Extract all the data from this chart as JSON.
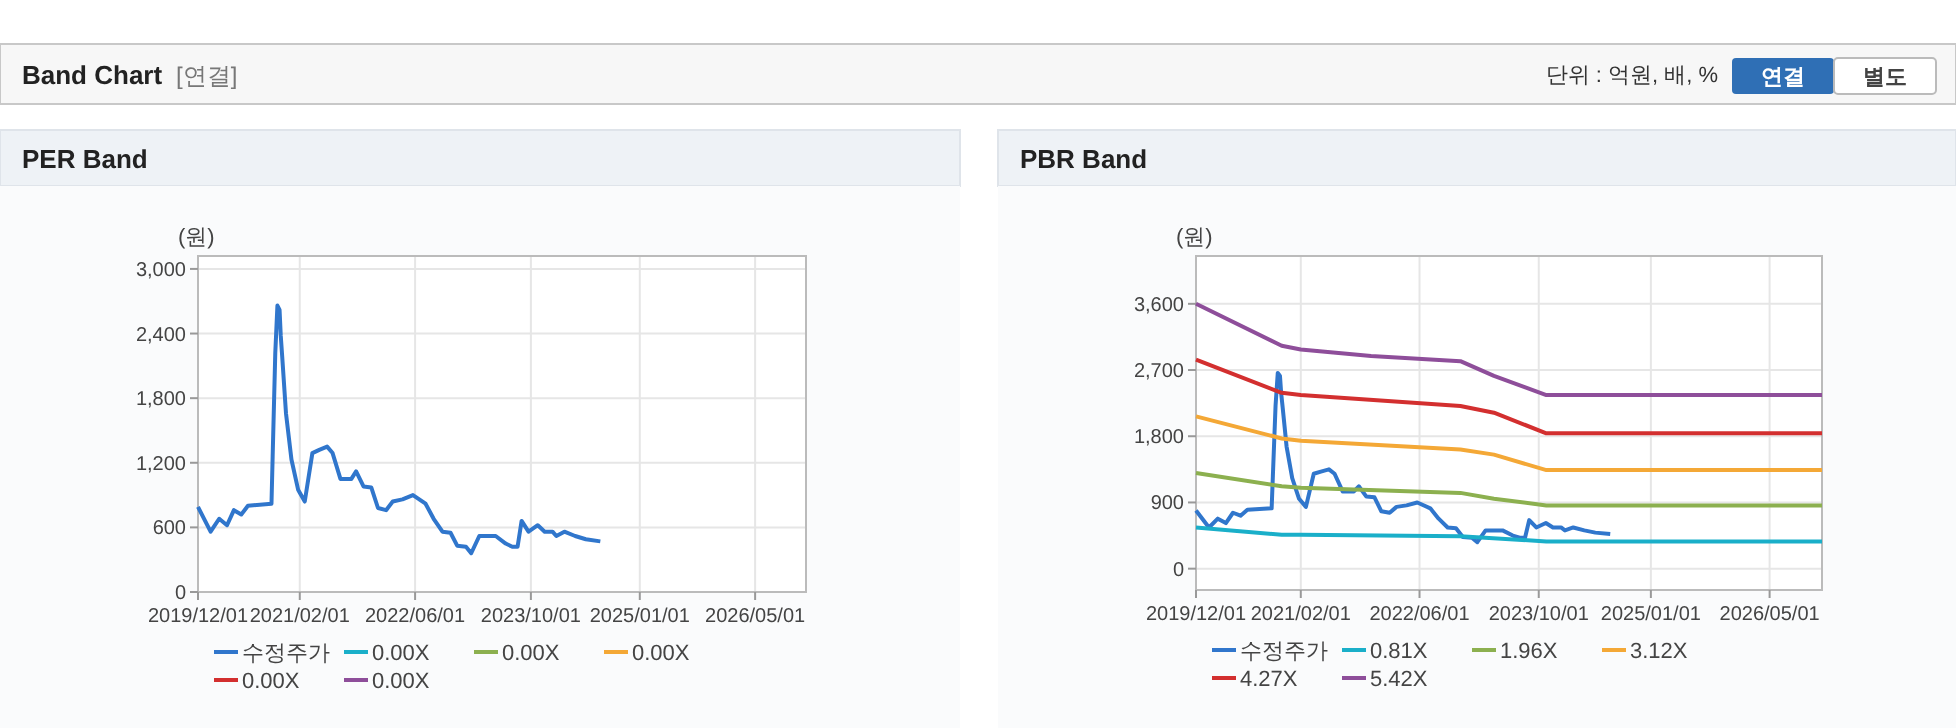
{
  "chart_data": [
    {
      "type": "other",
      "title": "Band Chart",
      "annotations": [
        "[연결]",
        "단위 : 억원, 배, %",
        "연결",
        "별도"
      ]
    },
    {
      "type": "line",
      "title": "PER Band",
      "ylabel": "(원)",
      "xlim": [
        "2019-12-01",
        "2026-12-01"
      ],
      "ylim": [
        0,
        3120
      ],
      "xticks": [
        {
          "value": "2019-12-01",
          "label": "2019/12/01"
        },
        {
          "value": "2021-02-01",
          "label": "2021/02/01"
        },
        {
          "value": "2022-06-01",
          "label": "2022/06/01"
        },
        {
          "value": "2023-10-01",
          "label": "2023/10/01"
        },
        {
          "value": "2025-01-01",
          "label": "2025/01/01"
        },
        {
          "value": "2026-05-01",
          "label": "2026/05/01"
        }
      ],
      "yticks": [
        0,
        600,
        {
          "value": 1200,
          "label": "1,200"
        },
        {
          "value": 1800,
          "label": "1,800"
        },
        {
          "value": 2400,
          "label": "2,400"
        },
        {
          "value": 3000,
          "label": "3,000"
        }
      ],
      "grid": true,
      "legend": "bottom",
      "series": [
        {
          "name": "수정주가",
          "color": "#3076cc",
          "x": [
            "2019-12-01",
            "2020-01-23",
            "2020-02-28",
            "2020-04-01",
            "2020-04-30",
            "2020-05-31",
            "2020-06-28",
            "2020-10-05",
            "2020-10-10",
            "2020-10-21",
            "2020-10-30",
            "2020-11-08",
            "2020-11-13",
            "2020-11-19",
            "2020-12-05",
            "2020-12-28",
            "2021-01-25",
            "2021-02-22",
            "2021-03-26",
            "2021-04-24",
            "2021-05-27",
            "2021-06-19",
            "2021-07-22",
            "2021-09-06",
            "2021-09-26",
            "2021-10-27",
            "2021-11-29",
            "2021-12-27",
            "2022-01-30",
            "2022-02-27",
            "2022-04-09",
            "2022-05-23",
            "2022-07-15",
            "2022-08-18",
            "2022-09-24",
            "2022-10-28",
            "2022-11-25",
            "2023-01-01",
            "2023-01-23",
            "2023-02-26",
            "2023-05-06",
            "2023-06-17",
            "2023-07-15",
            "2023-08-06",
            "2023-08-23",
            "2023-09-21",
            "2023-10-30",
            "2023-11-28",
            "2023-12-31",
            "2024-01-16",
            "2024-02-19",
            "2024-04-04",
            "2024-05-19",
            "2024-07-19"
          ],
          "values": [
            790,
            560,
            680,
            620,
            760,
            720,
            800,
            820,
            1260,
            2220,
            2660,
            2620,
            2380,
            2190,
            1660,
            1230,
            950,
            840,
            1290,
            1320,
            1350,
            1290,
            1050,
            1050,
            1120,
            980,
            970,
            780,
            760,
            840,
            860,
            900,
            820,
            680,
            560,
            550,
            430,
            420,
            360,
            520,
            520,
            450,
            420,
            420,
            660,
            560,
            620,
            560,
            560,
            520,
            560,
            520,
            490,
            470
          ]
        },
        {
          "name": "0.00X",
          "color": "#1aafc9"
        },
        {
          "name": "0.00X",
          "color": "#8cb04f"
        },
        {
          "name": "0.00X",
          "color": "#f4a836"
        },
        {
          "name": "0.00X",
          "color": "#d32f2f"
        },
        {
          "name": "0.00X",
          "color": "#8e4e9a"
        }
      ]
    },
    {
      "type": "line",
      "title": "PBR Band",
      "ylabel": "(원)",
      "xlim": [
        "2019-12-01",
        "2026-12-01"
      ],
      "ylim": [
        -290,
        4250
      ],
      "xticks": [
        {
          "value": "2019-12-01",
          "label": "2019/12/01"
        },
        {
          "value": "2021-02-01",
          "label": "2021/02/01"
        },
        {
          "value": "2022-06-01",
          "label": "2022/06/01"
        },
        {
          "value": "2023-10-01",
          "label": "2023/10/01"
        },
        {
          "value": "2025-01-01",
          "label": "2025/01/01"
        },
        {
          "value": "2026-05-01",
          "label": "2026/05/01"
        }
      ],
      "yticks": [
        0,
        900,
        {
          "value": 1800,
          "label": "1,800"
        },
        {
          "value": 2700,
          "label": "2,700"
        },
        {
          "value": 3600,
          "label": "3,600"
        }
      ],
      "grid": true,
      "legend": "bottom",
      "series": [
        {
          "name": "수정주가",
          "color": "#3076cc",
          "x": [
            "2019-12-01",
            "2020-01-23",
            "2020-02-28",
            "2020-04-01",
            "2020-04-30",
            "2020-05-31",
            "2020-06-28",
            "2020-10-05",
            "2020-10-10",
            "2020-10-21",
            "2020-10-30",
            "2020-11-08",
            "2020-11-13",
            "2020-11-19",
            "2020-12-05",
            "2020-12-28",
            "2021-01-25",
            "2021-02-22",
            "2021-03-26",
            "2021-04-24",
            "2021-05-27",
            "2021-06-19",
            "2021-07-22",
            "2021-09-06",
            "2021-09-26",
            "2021-10-27",
            "2021-11-29",
            "2021-12-27",
            "2022-01-30",
            "2022-02-27",
            "2022-04-09",
            "2022-05-23",
            "2022-07-15",
            "2022-08-18",
            "2022-09-24",
            "2022-10-28",
            "2022-11-25",
            "2023-01-01",
            "2023-01-23",
            "2023-02-26",
            "2023-05-06",
            "2023-06-17",
            "2023-07-15",
            "2023-08-06",
            "2023-08-23",
            "2023-09-21",
            "2023-10-30",
            "2023-11-28",
            "2023-12-31",
            "2024-01-16",
            "2024-02-19",
            "2024-04-04",
            "2024-05-19",
            "2024-07-19"
          ],
          "values": [
            790,
            560,
            680,
            620,
            760,
            720,
            800,
            820,
            1260,
            2220,
            2660,
            2620,
            2380,
            2190,
            1660,
            1230,
            950,
            840,
            1290,
            1320,
            1350,
            1290,
            1050,
            1050,
            1120,
            980,
            970,
            780,
            760,
            840,
            860,
            900,
            820,
            680,
            560,
            550,
            430,
            420,
            360,
            520,
            520,
            450,
            420,
            420,
            660,
            560,
            620,
            560,
            560,
            520,
            560,
            520,
            490,
            470
          ]
        },
        {
          "name": "0.81X",
          "color": "#1aafc9",
          "x": [
            "2019-12-01",
            "2020-11-15",
            "2021-02-01",
            "2022-11-15",
            "2023-11-01",
            "2026-12-01"
          ],
          "values": [
            560,
            460,
            460,
            440,
            370,
            370
          ]
        },
        {
          "name": "1.96X",
          "color": "#8cb04f",
          "x": [
            "2019-12-01",
            "2020-11-15",
            "2021-02-01",
            "2022-11-15",
            "2023-04-01",
            "2023-11-01",
            "2026-12-01"
          ],
          "values": [
            1300,
            1120,
            1100,
            1030,
            950,
            860,
            860
          ]
        },
        {
          "name": "3.12X",
          "color": "#f4a836",
          "x": [
            "2019-12-01",
            "2020-11-15",
            "2021-02-01",
            "2022-11-15",
            "2023-04-01",
            "2023-11-01",
            "2026-12-01"
          ],
          "values": [
            2070,
            1770,
            1740,
            1620,
            1550,
            1340,
            1340
          ]
        },
        {
          "name": "4.27X",
          "color": "#d32f2f",
          "x": [
            "2019-12-01",
            "2020-11-15",
            "2021-02-01",
            "2022-11-15",
            "2023-04-01",
            "2023-11-01",
            "2026-12-01"
          ],
          "values": [
            2840,
            2390,
            2360,
            2210,
            2120,
            1840,
            1840
          ]
        },
        {
          "name": "5.42X",
          "color": "#8e4e9a",
          "x": [
            "2019-12-01",
            "2020-11-15",
            "2021-02-01",
            "2021-11-15",
            "2022-11-15",
            "2023-04-01",
            "2023-11-01",
            "2026-12-01"
          ],
          "values": [
            3600,
            3030,
            2980,
            2890,
            2820,
            2620,
            2360,
            2360
          ]
        }
      ]
    }
  ]
}
